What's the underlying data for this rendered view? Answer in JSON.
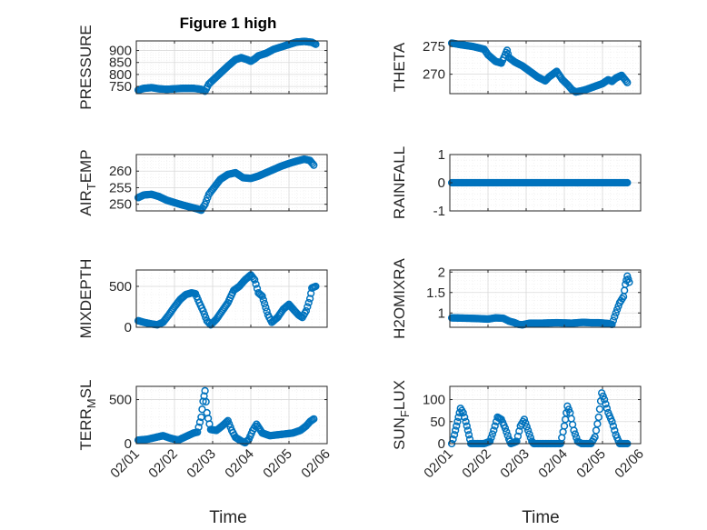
{
  "figure": {
    "title": "Figure 1 high"
  },
  "style": {
    "marker_color": "#0072BD",
    "axis_color": "#262626",
    "grid_color": "#d9d9d9"
  },
  "chart_data": [
    {
      "id": "pressure",
      "type": "scatter",
      "title": "Figure 1 high",
      "ylabel": "PRESSURE",
      "ylabel_sub": "",
      "ylabel_after": "",
      "xlabel": "",
      "xlim": [
        0,
        5
      ],
      "ylim": [
        720,
        940
      ],
      "yticks": [
        750,
        800,
        850,
        900
      ],
      "ytick_labels": [
        "750",
        "800",
        "850",
        "900"
      ],
      "xticks": [
        0,
        1,
        2,
        3,
        4,
        5
      ],
      "xtick_labels": [],
      "anchors": [
        [
          0.05,
          735
        ],
        [
          0.2,
          742
        ],
        [
          0.4,
          745
        ],
        [
          0.6,
          740
        ],
        [
          0.8,
          738
        ],
        [
          1.0,
          740
        ],
        [
          1.2,
          742
        ],
        [
          1.5,
          742
        ],
        [
          1.7,
          738
        ],
        [
          1.8,
          730
        ],
        [
          1.9,
          760
        ],
        [
          2.0,
          775
        ],
        [
          2.2,
          805
        ],
        [
          2.4,
          835
        ],
        [
          2.6,
          862
        ],
        [
          2.75,
          870
        ],
        [
          2.9,
          862
        ],
        [
          3.0,
          855
        ],
        [
          3.1,
          865
        ],
        [
          3.2,
          878
        ],
        [
          3.4,
          888
        ],
        [
          3.6,
          905
        ],
        [
          3.8,
          915
        ],
        [
          4.0,
          925
        ],
        [
          4.2,
          935
        ],
        [
          4.4,
          938
        ],
        [
          4.6,
          934
        ],
        [
          4.7,
          926
        ]
      ]
    },
    {
      "id": "theta",
      "type": "scatter",
      "title": "",
      "ylabel": "THETA",
      "ylabel_sub": "",
      "ylabel_after": "",
      "xlabel": "",
      "xlim": [
        0,
        5
      ],
      "ylim": [
        266.5,
        276
      ],
      "yticks": [
        270,
        275
      ],
      "ytick_labels": [
        "270",
        "275"
      ],
      "xticks": [
        0,
        1,
        2,
        3,
        4,
        5
      ],
      "xtick_labels": [],
      "anchors": [
        [
          0.05,
          275.6
        ],
        [
          0.3,
          275.3
        ],
        [
          0.6,
          275.0
        ],
        [
          0.9,
          274.5
        ],
        [
          1.0,
          273.5
        ],
        [
          1.2,
          272.3
        ],
        [
          1.35,
          272.0
        ],
        [
          1.45,
          273.5
        ],
        [
          1.5,
          274.3
        ],
        [
          1.55,
          273.0
        ],
        [
          1.7,
          272.2
        ],
        [
          1.9,
          271.5
        ],
        [
          2.1,
          270.5
        ],
        [
          2.3,
          269.5
        ],
        [
          2.5,
          268.8
        ],
        [
          2.6,
          269.5
        ],
        [
          2.8,
          270.5
        ],
        [
          2.95,
          269.0
        ],
        [
          3.1,
          268.0
        ],
        [
          3.2,
          267.2
        ],
        [
          3.3,
          266.8
        ],
        [
          3.45,
          267.0
        ],
        [
          3.6,
          267.3
        ],
        [
          3.8,
          267.8
        ],
        [
          4.0,
          268.3
        ],
        [
          4.15,
          269.0
        ],
        [
          4.25,
          268.7
        ],
        [
          4.35,
          269.3
        ],
        [
          4.5,
          269.8
        ],
        [
          4.65,
          268.5
        ]
      ]
    },
    {
      "id": "airtemp",
      "type": "scatter",
      "title": "",
      "ylabel": "AIR",
      "ylabel_sub": "T",
      "ylabel_after": "EMP",
      "xlabel": "",
      "xlim": [
        0,
        5
      ],
      "ylim": [
        248,
        265
      ],
      "yticks": [
        250,
        255,
        260
      ],
      "ytick_labels": [
        "250",
        "255",
        "260"
      ],
      "xticks": [
        0,
        1,
        2,
        3,
        4,
        5
      ],
      "xtick_labels": [],
      "anchors": [
        [
          0.05,
          252.0
        ],
        [
          0.2,
          252.8
        ],
        [
          0.4,
          253.0
        ],
        [
          0.6,
          252.3
        ],
        [
          0.8,
          251.2
        ],
        [
          1.0,
          250.5
        ],
        [
          1.2,
          249.8
        ],
        [
          1.4,
          249.2
        ],
        [
          1.6,
          248.6
        ],
        [
          1.7,
          248.2
        ],
        [
          1.8,
          250.0
        ],
        [
          1.9,
          253.0
        ],
        [
          2.0,
          254.5
        ],
        [
          2.2,
          257.5
        ],
        [
          2.4,
          259.0
        ],
        [
          2.6,
          259.5
        ],
        [
          2.8,
          258.0
        ],
        [
          3.0,
          257.8
        ],
        [
          3.2,
          258.5
        ],
        [
          3.4,
          259.5
        ],
        [
          3.6,
          260.5
        ],
        [
          3.8,
          261.5
        ],
        [
          4.0,
          262.3
        ],
        [
          4.2,
          263.0
        ],
        [
          4.4,
          263.6
        ],
        [
          4.55,
          263.2
        ],
        [
          4.65,
          261.8
        ]
      ]
    },
    {
      "id": "rainfall",
      "type": "scatter",
      "title": "",
      "ylabel": "RAINFALL",
      "ylabel_sub": "",
      "ylabel_after": "",
      "xlabel": "",
      "xlim": [
        0,
        5
      ],
      "ylim": [
        -1,
        1
      ],
      "yticks": [
        -1,
        0,
        1
      ],
      "ytick_labels": [
        "-1",
        "0",
        "1"
      ],
      "xticks": [
        0,
        1,
        2,
        3,
        4,
        5
      ],
      "xtick_labels": [],
      "anchors": [
        [
          0.05,
          0
        ],
        [
          4.65,
          0
        ]
      ]
    },
    {
      "id": "mixdepth",
      "type": "scatter",
      "title": "",
      "ylabel": "MIXDEPTH",
      "ylabel_sub": "",
      "ylabel_after": "",
      "xlabel": "",
      "xlim": [
        0,
        5
      ],
      "ylim": [
        0,
        700
      ],
      "yticks": [
        0,
        500
      ],
      "ytick_labels": [
        "0",
        "500"
      ],
      "xticks": [
        0,
        1,
        2,
        3,
        4,
        5
      ],
      "xtick_labels": [],
      "anchors": [
        [
          0.05,
          80
        ],
        [
          0.2,
          60
        ],
        [
          0.4,
          40
        ],
        [
          0.55,
          30
        ],
        [
          0.7,
          60
        ],
        [
          0.85,
          150
        ],
        [
          1.0,
          250
        ],
        [
          1.15,
          340
        ],
        [
          1.3,
          400
        ],
        [
          1.45,
          420
        ],
        [
          1.55,
          410
        ],
        [
          1.65,
          300
        ],
        [
          1.75,
          200
        ],
        [
          1.85,
          80
        ],
        [
          1.95,
          30
        ],
        [
          2.1,
          100
        ],
        [
          2.25,
          200
        ],
        [
          2.4,
          300
        ],
        [
          2.55,
          450
        ],
        [
          2.7,
          500
        ],
        [
          2.85,
          580
        ],
        [
          3.0,
          640
        ],
        [
          3.1,
          580
        ],
        [
          3.2,
          420
        ],
        [
          3.3,
          380
        ],
        [
          3.45,
          150
        ],
        [
          3.55,
          60
        ],
        [
          3.7,
          120
        ],
        [
          3.85,
          220
        ],
        [
          4.0,
          280
        ],
        [
          4.15,
          200
        ],
        [
          4.25,
          150
        ],
        [
          4.35,
          120
        ],
        [
          4.45,
          200
        ],
        [
          4.55,
          350
        ],
        [
          4.6,
          480
        ],
        [
          4.7,
          500
        ]
      ]
    },
    {
      "id": "h2omixra",
      "type": "scatter",
      "title": "",
      "ylabel": "H2OMIXRA",
      "ylabel_sub": "",
      "ylabel_after": "",
      "xlabel": "",
      "xlim": [
        0,
        5
      ],
      "ylim": [
        0.65,
        2.05
      ],
      "yticks": [
        1,
        1.5,
        2
      ],
      "ytick_labels": [
        "1",
        "1.5",
        "2"
      ],
      "xticks": [
        0,
        1,
        2,
        3,
        4,
        5
      ],
      "xtick_labels": [],
      "anchors": [
        [
          0.05,
          0.88
        ],
        [
          0.5,
          0.87
        ],
        [
          0.8,
          0.86
        ],
        [
          1.0,
          0.85
        ],
        [
          1.2,
          0.88
        ],
        [
          1.4,
          0.87
        ],
        [
          1.55,
          0.8
        ],
        [
          1.7,
          0.76
        ],
        [
          1.8,
          0.72
        ],
        [
          1.9,
          0.71
        ],
        [
          2.1,
          0.75
        ],
        [
          2.4,
          0.75
        ],
        [
          2.8,
          0.76
        ],
        [
          3.2,
          0.75
        ],
        [
          3.5,
          0.77
        ],
        [
          3.7,
          0.76
        ],
        [
          3.9,
          0.76
        ],
        [
          4.05,
          0.75
        ],
        [
          4.15,
          0.74
        ],
        [
          4.25,
          0.72
        ],
        [
          4.35,
          1.0
        ],
        [
          4.45,
          1.25
        ],
        [
          4.55,
          1.4
        ],
        [
          4.6,
          1.7
        ],
        [
          4.65,
          1.9
        ],
        [
          4.7,
          1.75
        ]
      ]
    },
    {
      "id": "terrmsl",
      "type": "scatter",
      "title": "",
      "ylabel": "TERR",
      "ylabel_sub": "M",
      "ylabel_after": "SL",
      "xlabel": "",
      "xlim": [
        0,
        5
      ],
      "ylim": [
        0,
        650
      ],
      "yticks": [
        0,
        500
      ],
      "ytick_labels": [
        "0",
        "500"
      ],
      "xticks": [
        0,
        1,
        2,
        3,
        4,
        5
      ],
      "xtick_labels": [
        "02/01",
        "02/02",
        "02/03",
        "02/04",
        "02/05",
        "02/06"
      ],
      "anchors": [
        [
          0.05,
          40
        ],
        [
          0.3,
          50
        ],
        [
          0.5,
          70
        ],
        [
          0.7,
          90
        ],
        [
          0.9,
          60
        ],
        [
          1.1,
          40
        ],
        [
          1.3,
          80
        ],
        [
          1.5,
          120
        ],
        [
          1.6,
          130
        ],
        [
          1.7,
          300
        ],
        [
          1.75,
          480
        ],
        [
          1.8,
          600
        ],
        [
          1.85,
          350
        ],
        [
          1.95,
          160
        ],
        [
          2.1,
          150
        ],
        [
          2.25,
          200
        ],
        [
          2.4,
          260
        ],
        [
          2.5,
          150
        ],
        [
          2.6,
          70
        ],
        [
          2.75,
          30
        ],
        [
          2.85,
          10
        ],
        [
          2.95,
          50
        ],
        [
          3.05,
          150
        ],
        [
          3.15,
          220
        ],
        [
          3.3,
          120
        ],
        [
          3.5,
          90
        ],
        [
          3.7,
          100
        ],
        [
          3.9,
          110
        ],
        [
          4.1,
          120
        ],
        [
          4.3,
          150
        ],
        [
          4.45,
          200
        ],
        [
          4.55,
          250
        ],
        [
          4.65,
          280
        ]
      ]
    },
    {
      "id": "sunflux",
      "type": "scatter",
      "title": "",
      "ylabel": "SUN",
      "ylabel_sub": "F",
      "ylabel_after": "LUX",
      "xlabel": "",
      "xlim": [
        0,
        5
      ],
      "ylim": [
        0,
        130
      ],
      "yticks": [
        0,
        50,
        100
      ],
      "ytick_labels": [
        "0",
        "50",
        "100"
      ],
      "xticks": [
        0,
        1,
        2,
        3,
        4,
        5
      ],
      "xtick_labels": [
        "02/01",
        "02/02",
        "02/03",
        "02/04",
        "02/05",
        "02/06"
      ],
      "anchors": [
        [
          0.05,
          0
        ],
        [
          0.12,
          20
        ],
        [
          0.2,
          50
        ],
        [
          0.28,
          80
        ],
        [
          0.35,
          70
        ],
        [
          0.42,
          50
        ],
        [
          0.5,
          20
        ],
        [
          0.55,
          0
        ],
        [
          0.9,
          0
        ],
        [
          1.05,
          5
        ],
        [
          1.15,
          30
        ],
        [
          1.25,
          60
        ],
        [
          1.35,
          55
        ],
        [
          1.45,
          35
        ],
        [
          1.55,
          10
        ],
        [
          1.6,
          0
        ],
        [
          1.75,
          5
        ],
        [
          1.85,
          40
        ],
        [
          1.95,
          55
        ],
        [
          2.05,
          30
        ],
        [
          2.15,
          5
        ],
        [
          2.2,
          0
        ],
        [
          2.9,
          0
        ],
        [
          3.0,
          40
        ],
        [
          3.08,
          85
        ],
        [
          3.15,
          70
        ],
        [
          3.25,
          30
        ],
        [
          3.35,
          5
        ],
        [
          3.45,
          0
        ],
        [
          3.7,
          0
        ],
        [
          3.8,
          15
        ],
        [
          3.9,
          60
        ],
        [
          3.98,
          115
        ],
        [
          4.05,
          100
        ],
        [
          4.15,
          70
        ],
        [
          4.25,
          50
        ],
        [
          4.35,
          20
        ],
        [
          4.45,
          0
        ],
        [
          4.65,
          0
        ]
      ]
    }
  ],
  "xlabels": {
    "left": "Time",
    "right": "Time"
  }
}
